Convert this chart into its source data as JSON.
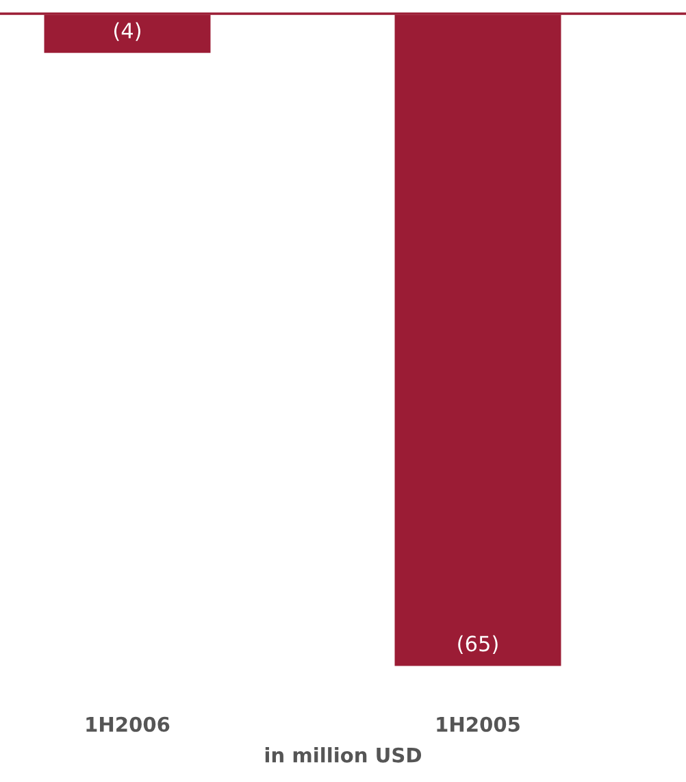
{
  "chart_data": {
    "type": "bar",
    "xlabel": "in million USD",
    "categories": [
      "1H2006",
      "1H2005"
    ],
    "values": [
      -4,
      -65
    ],
    "value_labels": [
      "(4)",
      "(65)"
    ],
    "color": "#9b1c35",
    "grid": false,
    "legend": false
  }
}
